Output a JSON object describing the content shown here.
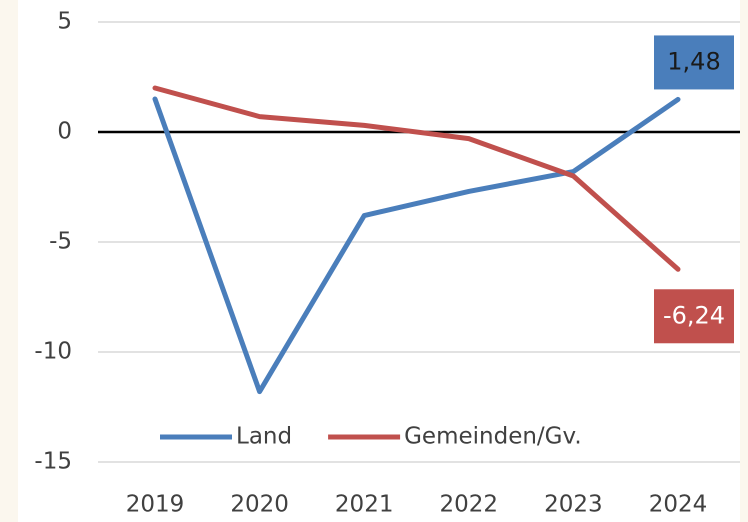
{
  "chart_data": {
    "type": "line",
    "categories": [
      "2019",
      "2020",
      "2021",
      "2022",
      "2023",
      "2024"
    ],
    "series": [
      {
        "name": "Land",
        "color": "#4a7ebb",
        "values": [
          1.5,
          -11.8,
          -3.8,
          -2.7,
          -1.8,
          1.48
        ],
        "value_labels": [
          null,
          null,
          null,
          null,
          null,
          "1,48"
        ]
      },
      {
        "name": "Gemeinden/Gv.",
        "color": "#c0504d",
        "values": [
          2.0,
          0.7,
          0.3,
          -0.3,
          -2.0,
          -6.24
        ],
        "value_labels": [
          null,
          null,
          null,
          null,
          null,
          "-6,24"
        ]
      }
    ],
    "ylim": [
      -15,
      5
    ],
    "yticks": [
      -15,
      -10,
      -5,
      0,
      5
    ],
    "grid": true,
    "legend": "bottom"
  }
}
